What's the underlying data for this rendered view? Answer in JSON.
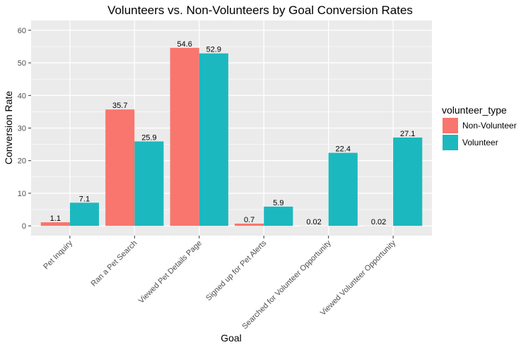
{
  "chart_data": {
    "type": "bar",
    "title": "Volunteers vs. Non-Volunteers by Goal Conversion Rates",
    "xlabel": "Goal",
    "ylabel": "Conversion Rate",
    "ylim": [
      -3,
      63
    ],
    "yticks": [
      0,
      10,
      20,
      30,
      40,
      50,
      60
    ],
    "grid": true,
    "legend_position": "right",
    "categories": [
      "Pet Inquiry",
      "Ran a Pet Search",
      "Viewed Pet Details Page",
      "Signed up for Pet Alerts",
      "Searched for Volunteer Opportunity",
      "Viewed Volunteer Opportunity"
    ],
    "series": [
      {
        "name": "Non-Volunteer",
        "color": "#F8766D",
        "values": [
          1.1,
          35.7,
          54.6,
          0.7,
          0.02,
          0.02
        ],
        "labels": [
          "1.1",
          "35.7",
          "54.6",
          "0.7",
          "0.02",
          "0.02"
        ]
      },
      {
        "name": "Volunteer",
        "color": "#1CB8BF",
        "values": [
          7.1,
          25.9,
          52.9,
          5.9,
          22.4,
          27.1
        ],
        "labels": [
          "7.1",
          "25.9",
          "52.9",
          "5.9",
          "22.4",
          "27.1"
        ]
      }
    ],
    "legend_title": "volunteer_type",
    "panel_background": "#EBEBEB",
    "grid_color": "#FFFFFF"
  }
}
